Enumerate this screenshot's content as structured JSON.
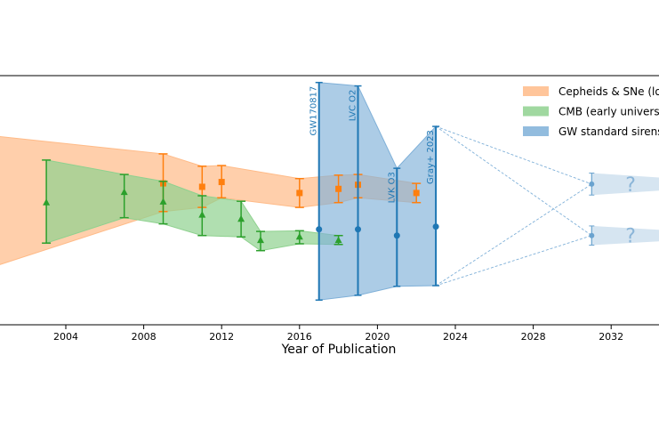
{
  "chart_data": {
    "type": "scatter",
    "xlabel": "Year of Publication",
    "ylabel": "",
    "xlim": [
      2000.4,
      2034.3
    ],
    "ylim": [
      55.1,
      91.4
    ],
    "xticks": [
      2004,
      2008,
      2012,
      2016,
      2020,
      2024,
      2028,
      2032
    ],
    "grid": false,
    "legend_placement": "top-right",
    "series": [
      {
        "name": "Cepheids & SNe (local universe)",
        "legend_label": "Cepheids & SNe (lo",
        "color": "#ff7f0e",
        "band_color": "#ffbb88",
        "marker": "square",
        "points": [
          {
            "x": 2000,
            "y": 73.0,
            "lo": 63.3,
            "hi": 82.7
          },
          {
            "x": 2009,
            "y": 75.7,
            "lo": 71.6,
            "hi": 80.0
          },
          {
            "x": 2011,
            "y": 75.2,
            "lo": 72.2,
            "hi": 78.2
          },
          {
            "x": 2012,
            "y": 75.9,
            "lo": 73.6,
            "hi": 78.3
          },
          {
            "x": 2016,
            "y": 74.3,
            "lo": 72.2,
            "hi": 76.4
          },
          {
            "x": 2018,
            "y": 74.9,
            "lo": 72.9,
            "hi": 76.9
          },
          {
            "x": 2019,
            "y": 75.5,
            "lo": 73.6,
            "hi": 77.0
          },
          {
            "x": 2022,
            "y": 74.3,
            "lo": 72.9,
            "hi": 75.7
          }
        ]
      },
      {
        "name": "CMB (early universe)",
        "legend_label": "CMB (early universe",
        "color": "#2ca02c",
        "band_color": "#8fd18f",
        "marker": "triangle",
        "points": [
          {
            "x": 2003,
            "y": 72.9,
            "lo": 67.0,
            "hi": 79.1
          },
          {
            "x": 2007,
            "y": 74.4,
            "lo": 70.7,
            "hi": 77.0
          },
          {
            "x": 2009,
            "y": 73.0,
            "lo": 69.8,
            "hi": 76.0
          },
          {
            "x": 2011,
            "y": 71.1,
            "lo": 68.1,
            "hi": 73.9
          },
          {
            "x": 2013,
            "y": 70.5,
            "lo": 67.9,
            "hi": 73.1
          },
          {
            "x": 2014,
            "y": 67.4,
            "lo": 65.9,
            "hi": 68.7
          },
          {
            "x": 2016,
            "y": 67.9,
            "lo": 66.9,
            "hi": 68.8
          },
          {
            "x": 2018,
            "y": 67.4,
            "lo": 66.8,
            "hi": 68.1
          }
        ]
      },
      {
        "name": "GW standard sirens",
        "legend_label": "GW standard sirens",
        "color": "#1f77b4",
        "band_color": "#7fb0d8",
        "marker": "circle",
        "points": [
          {
            "x": 2017,
            "y": 69.0,
            "lo": 58.7,
            "hi": 90.4,
            "label": "GW170817"
          },
          {
            "x": 2019,
            "y": 69.0,
            "lo": 59.4,
            "hi": 89.9,
            "label": "LVC O2"
          },
          {
            "x": 2021,
            "y": 68.1,
            "lo": 60.7,
            "hi": 77.9,
            "label": "LVK O3"
          },
          {
            "x": 2023,
            "y": 69.4,
            "lo": 60.8,
            "hi": 84.0,
            "label": "Gray+ 2023"
          }
        ]
      }
    ],
    "projections": [
      {
        "x": 2031,
        "y": 75.6,
        "lo": 74.0,
        "hi": 77.2,
        "label": "?"
      },
      {
        "x": 2031,
        "y": 68.1,
        "lo": 66.7,
        "hi": 69.5,
        "label": "?"
      }
    ]
  }
}
